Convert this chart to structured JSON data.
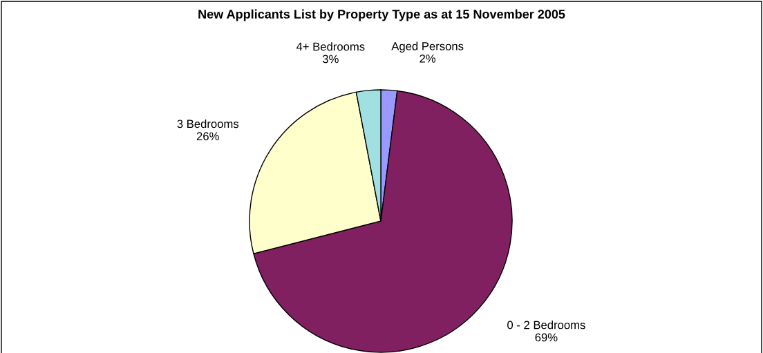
{
  "chart_data": {
    "type": "pie",
    "title": "New Applicants List by Property Type as at 15 November 2005",
    "categories": [
      "Aged Persons",
      "0 - 2 Bedrooms",
      "3 Bedrooms",
      "4+ Bedrooms"
    ],
    "values": [
      2,
      69,
      26,
      3
    ],
    "value_labels": [
      "2%",
      "69%",
      "26%",
      "3%"
    ],
    "colors": [
      "#9999ff",
      "#802060",
      "#ffffcc",
      "#a0e0e0"
    ],
    "legend": false
  }
}
